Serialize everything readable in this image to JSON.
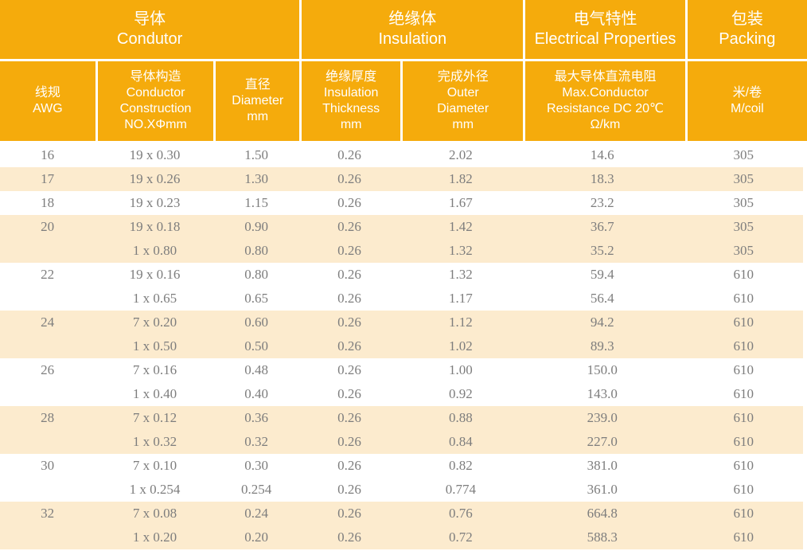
{
  "colors": {
    "header_bg": "#F5AB0C",
    "stripe_bg": "#FCEBCE",
    "header_text": "#FFFFFF",
    "data_text": "#7D7D7D"
  },
  "table": {
    "group_headers": [
      {
        "zh": "导体",
        "en": "Condutor"
      },
      {
        "zh": "绝缘体",
        "en": "Insulation"
      },
      {
        "zh": "电气特性",
        "en": "Electrical Properties"
      },
      {
        "zh": "包装",
        "en": "Packing"
      }
    ],
    "columns": [
      {
        "lines": [
          "线规",
          "AWG"
        ]
      },
      {
        "lines": [
          "导体构造",
          "Conductor",
          "Construction",
          "NO.XΦmm"
        ]
      },
      {
        "lines": [
          "直径",
          "Diameter",
          "mm"
        ]
      },
      {
        "lines": [
          "绝缘厚度",
          "Insulation",
          "Thickness",
          "mm"
        ]
      },
      {
        "lines": [
          "完成外径",
          "Outer",
          "Diameter",
          "mm"
        ]
      },
      {
        "lines": [
          "最大导体直流电阻",
          "Max.Conductor",
          "Resistance DC 20℃",
          "Ω/km"
        ]
      },
      {
        "lines": [
          "米/卷",
          "M/coil"
        ]
      }
    ],
    "rows": [
      {
        "shade": false,
        "cells": [
          "16",
          "19 x 0.30",
          "1.50",
          "0.26",
          "2.02",
          "14.6",
          "305"
        ]
      },
      {
        "shade": true,
        "cells": [
          "17",
          "19 x 0.26",
          "1.30",
          "0.26",
          "1.82",
          "18.3",
          "305"
        ]
      },
      {
        "shade": false,
        "cells": [
          "18",
          "19 x 0.23",
          "1.15",
          "0.26",
          "1.67",
          "23.2",
          "305"
        ]
      },
      {
        "shade": true,
        "cells": [
          "20",
          "19 x 0.18",
          "0.90",
          "0.26",
          "1.42",
          "36.7",
          "305"
        ]
      },
      {
        "shade": true,
        "cells": [
          "",
          "1 x 0.80",
          "0.80",
          "0.26",
          "1.32",
          "35.2",
          "305"
        ]
      },
      {
        "shade": false,
        "cells": [
          "22",
          "19 x 0.16",
          "0.80",
          "0.26",
          "1.32",
          "59.4",
          "610"
        ]
      },
      {
        "shade": false,
        "cells": [
          "",
          "1 x 0.65",
          "0.65",
          "0.26",
          "1.17",
          "56.4",
          "610"
        ]
      },
      {
        "shade": true,
        "cells": [
          "24",
          "7 x 0.20",
          "0.60",
          "0.26",
          "1.12",
          "94.2",
          "610"
        ]
      },
      {
        "shade": true,
        "cells": [
          "",
          "1 x 0.50",
          "0.50",
          "0.26",
          "1.02",
          "89.3",
          "610"
        ]
      },
      {
        "shade": false,
        "cells": [
          "26",
          "7 x 0.16",
          "0.48",
          "0.26",
          "1.00",
          "150.0",
          "610"
        ]
      },
      {
        "shade": false,
        "cells": [
          "",
          "1 x 0.40",
          "0.40",
          "0.26",
          "0.92",
          "143.0",
          "610"
        ]
      },
      {
        "shade": true,
        "cells": [
          "28",
          "7 x 0.12",
          "0.36",
          "0.26",
          "0.88",
          "239.0",
          "610"
        ]
      },
      {
        "shade": true,
        "cells": [
          "",
          "1 x 0.32",
          "0.32",
          "0.26",
          "0.84",
          "227.0",
          "610"
        ]
      },
      {
        "shade": false,
        "cells": [
          "30",
          "7 x 0.10",
          "0.30",
          "0.26",
          "0.82",
          "381.0",
          "610"
        ]
      },
      {
        "shade": false,
        "cells": [
          "",
          "1 x 0.254",
          "0.254",
          "0.26",
          "0.774",
          "361.0",
          "610"
        ]
      },
      {
        "shade": true,
        "cells": [
          "32",
          "7 x 0.08",
          "0.24",
          "0.26",
          "0.76",
          "664.8",
          "610"
        ]
      },
      {
        "shade": true,
        "cells": [
          "",
          "1 x 0.20",
          "0.20",
          "0.26",
          "0.72",
          "588.3",
          "610"
        ]
      }
    ]
  }
}
